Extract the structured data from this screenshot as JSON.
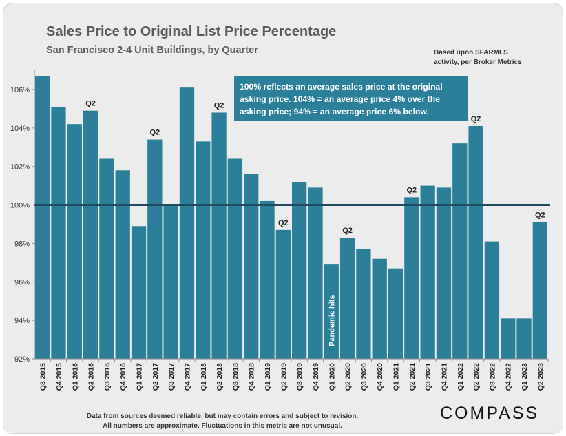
{
  "chart_data": {
    "type": "bar",
    "title": "Sales Price to Original List Price Percentage",
    "subtitle": "San Francisco 2-4 Unit Buildings, by Quarter",
    "source_note": [
      "Based upon SFARMLS",
      "activity, per Broker Metrics"
    ],
    "categories": [
      "Q3 2015",
      "Q4 2015",
      "Q1 2016",
      "Q2 2016",
      "Q3 2016",
      "Q4 2016",
      "Q1 2017",
      "Q2 2017",
      "Q3 2017",
      "Q4 2017",
      "Q1 2018",
      "Q2 2018",
      "Q3 2018",
      "Q4 2018",
      "Q1 2019",
      "Q2 2019",
      "Q3 2019",
      "Q4 2019",
      "Q1 2020",
      "Q2 2020",
      "Q3 2020",
      "Q4 2020",
      "Q1 2021",
      "Q2 2021",
      "Q3 2021",
      "Q4 2021",
      "Q1 2022",
      "Q2 2022",
      "Q3 2022",
      "Q4 2022",
      "Q1 2023",
      "Q2 2023"
    ],
    "values": [
      106.7,
      105.1,
      104.2,
      104.9,
      102.4,
      101.8,
      98.9,
      103.4,
      100.0,
      106.1,
      103.3,
      104.8,
      102.4,
      101.6,
      100.2,
      98.7,
      101.2,
      100.9,
      96.9,
      98.3,
      97.7,
      97.2,
      96.7,
      100.4,
      101.0,
      100.9,
      103.2,
      104.1,
      98.1,
      94.1,
      94.1,
      99.1
    ],
    "ylim": [
      92,
      107
    ],
    "yticks": [
      92,
      94,
      96,
      98,
      100,
      102,
      104,
      106
    ],
    "ytick_labels": [
      "92%",
      "94%",
      "96%",
      "98%",
      "100%",
      "102%",
      "104%",
      "106%"
    ],
    "reference_line": 100,
    "bar_color": "#2b7f98",
    "reference_line_color": "#1d4a5c",
    "q2_label": "Q2",
    "q2_marked": [
      "Q2 2016",
      "Q2 2017",
      "Q2 2018",
      "Q2 2019",
      "Q2 2020",
      "Q2 2021",
      "Q2 2022",
      "Q2 2023"
    ],
    "callout": {
      "lines": [
        "100% reflects an average sales price at the original",
        "asking price. 104% = an average price 4% over the",
        "asking price; 94% = an average price 6% below."
      ],
      "background": "#2b7f98"
    },
    "annotation": {
      "category": "Q1 2020",
      "text": "Pandemic hits"
    }
  },
  "footer": {
    "disclaimer": [
      "Data from sources deemed reliable, but may contain errors and subject to revision.",
      "All numbers are approximate. Fluctuations in this metric are not unusual."
    ],
    "logo": "COMPASS"
  }
}
